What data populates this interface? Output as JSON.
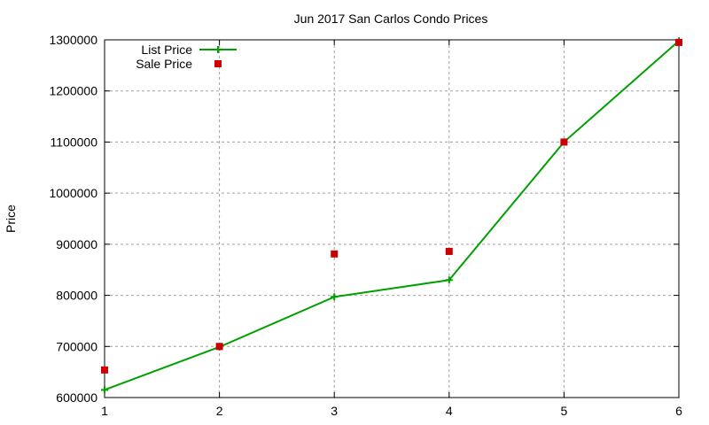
{
  "chart_data": {
    "type": "line",
    "title": "Jun 2017 San Carlos Condo Prices",
    "xlabel": "",
    "ylabel": "Price",
    "xlim": [
      1,
      6
    ],
    "ylim": [
      600000,
      1300000
    ],
    "x_ticks": [
      1,
      2,
      3,
      4,
      5,
      6
    ],
    "y_ticks": [
      600000,
      700000,
      800000,
      900000,
      1000000,
      1100000,
      1200000,
      1300000
    ],
    "grid": true,
    "legend_position": "top-left",
    "x": [
      1,
      2,
      3,
      4,
      5,
      6
    ],
    "series": [
      {
        "name": "List Price",
        "style": "linespoints",
        "marker": "plus",
        "color": "#00a000",
        "values": [
          615000,
          699000,
          797000,
          830000,
          1100000,
          1298000
        ]
      },
      {
        "name": "Sale Price",
        "style": "points",
        "marker": "square",
        "color": "#cc0000",
        "values": [
          654000,
          700000,
          881000,
          886000,
          1100000,
          1295000
        ]
      }
    ]
  }
}
